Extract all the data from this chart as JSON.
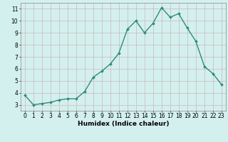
{
  "x": [
    0,
    1,
    2,
    3,
    4,
    5,
    6,
    7,
    8,
    9,
    10,
    11,
    12,
    13,
    14,
    15,
    16,
    17,
    18,
    19,
    20,
    21,
    22,
    23
  ],
  "y": [
    3.8,
    3.0,
    3.1,
    3.2,
    3.4,
    3.5,
    3.5,
    4.1,
    5.3,
    5.8,
    6.4,
    7.3,
    9.3,
    10.0,
    9.0,
    9.8,
    11.1,
    10.3,
    10.6,
    9.4,
    8.3,
    6.2,
    5.6,
    4.7
  ],
  "xlabel": "Humidex (Indice chaleur)",
  "xlim": [
    -0.5,
    23.5
  ],
  "ylim": [
    2.5,
    11.5
  ],
  "yticks": [
    3,
    4,
    5,
    6,
    7,
    8,
    9,
    10,
    11
  ],
  "xticks": [
    0,
    1,
    2,
    3,
    4,
    5,
    6,
    7,
    8,
    9,
    10,
    11,
    12,
    13,
    14,
    15,
    16,
    17,
    18,
    19,
    20,
    21,
    22,
    23
  ],
  "line_color": "#2d8b7a",
  "bg_color": "#d4f0ee",
  "grid_color": "#c8b8b8",
  "tick_label_fontsize": 5.5,
  "xlabel_fontsize": 6.5,
  "line_width": 1.0,
  "marker_size": 2.0
}
